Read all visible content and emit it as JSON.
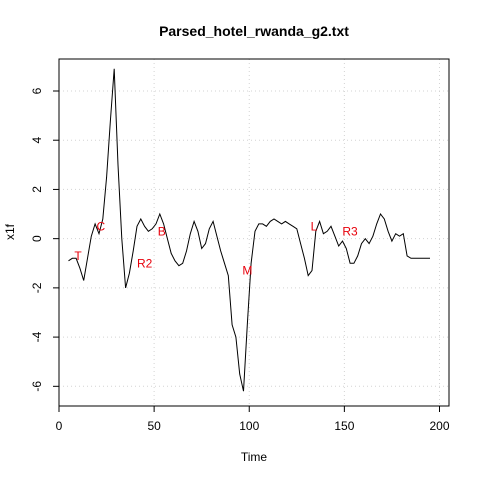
{
  "chart_data": {
    "type": "line",
    "title": "Parsed_hotel_rwanda_g2.txt",
    "xlabel": "Time",
    "ylabel": "x1f",
    "xlim": [
      0,
      205
    ],
    "ylim": [
      -6.8,
      7.3
    ],
    "xticks": [
      0,
      50,
      100,
      150,
      200
    ],
    "yticks": [
      -6,
      -4,
      -2,
      0,
      2,
      4,
      6
    ],
    "grid": true,
    "colors": {
      "line": "#000000",
      "annotation": "#e8000b",
      "grid": "#d3d3d3"
    },
    "series": [
      {
        "x": [
          5,
          7,
          9,
          11,
          13,
          15,
          17,
          19,
          21,
          23,
          25,
          27,
          29,
          31,
          33,
          35,
          37,
          39,
          41,
          43,
          45,
          47,
          49,
          51,
          53,
          55,
          57,
          59,
          61,
          63,
          65,
          67,
          69,
          71,
          73,
          75,
          77,
          79,
          81,
          83,
          85,
          87,
          89,
          91,
          93,
          95,
          97,
          99,
          101,
          103,
          105,
          107,
          109,
          111,
          113,
          115,
          117,
          119,
          121,
          123,
          125,
          127,
          129,
          131,
          133,
          135,
          137,
          139,
          141,
          143,
          145,
          147,
          149,
          151,
          153,
          155,
          157,
          159,
          161,
          163,
          165,
          167,
          169,
          171,
          173,
          175,
          177,
          179,
          181,
          183,
          185,
          187,
          189,
          191,
          193,
          195
        ],
        "y": [
          -0.9,
          -0.8,
          -0.8,
          -1.2,
          -1.7,
          -0.8,
          0.1,
          0.6,
          0.2,
          0.8,
          2.5,
          4.8,
          6.9,
          3.0,
          0.0,
          -2.0,
          -1.4,
          -0.5,
          0.5,
          0.8,
          0.5,
          0.3,
          0.4,
          0.6,
          1.0,
          0.6,
          0.0,
          -0.6,
          -0.9,
          -1.1,
          -1.0,
          -0.5,
          0.2,
          0.7,
          0.3,
          -0.4,
          -0.2,
          0.4,
          0.7,
          0.1,
          -0.5,
          -1.0,
          -1.5,
          -3.5,
          -4.0,
          -5.5,
          -6.2,
          -3.5,
          -1.0,
          0.3,
          0.6,
          0.6,
          0.5,
          0.7,
          0.8,
          0.7,
          0.6,
          0.7,
          0.6,
          0.5,
          0.4,
          -0.2,
          -0.8,
          -1.5,
          -1.3,
          0.3,
          0.7,
          0.2,
          0.3,
          0.5,
          0.1,
          -0.3,
          -0.1,
          -0.4,
          -1.0,
          -1.0,
          -0.7,
          -0.2,
          0.0,
          -0.2,
          0.1,
          0.6,
          1.0,
          0.8,
          0.3,
          -0.1,
          0.2,
          0.1,
          0.2,
          -0.7,
          -0.8,
          -0.8,
          -0.8,
          -0.8,
          -0.8,
          -0.8
        ]
      }
    ],
    "annotations": [
      {
        "label": "T",
        "x": 10,
        "y": -0.7
      },
      {
        "label": "C",
        "x": 22,
        "y": 0.5
      },
      {
        "label": "R2",
        "x": 45,
        "y": -1.0
      },
      {
        "label": "B",
        "x": 54,
        "y": 0.3
      },
      {
        "label": "M",
        "x": 99,
        "y": -1.3
      },
      {
        "label": "L",
        "x": 134,
        "y": 0.5
      },
      {
        "label": "R3",
        "x": 153,
        "y": 0.3
      }
    ]
  }
}
